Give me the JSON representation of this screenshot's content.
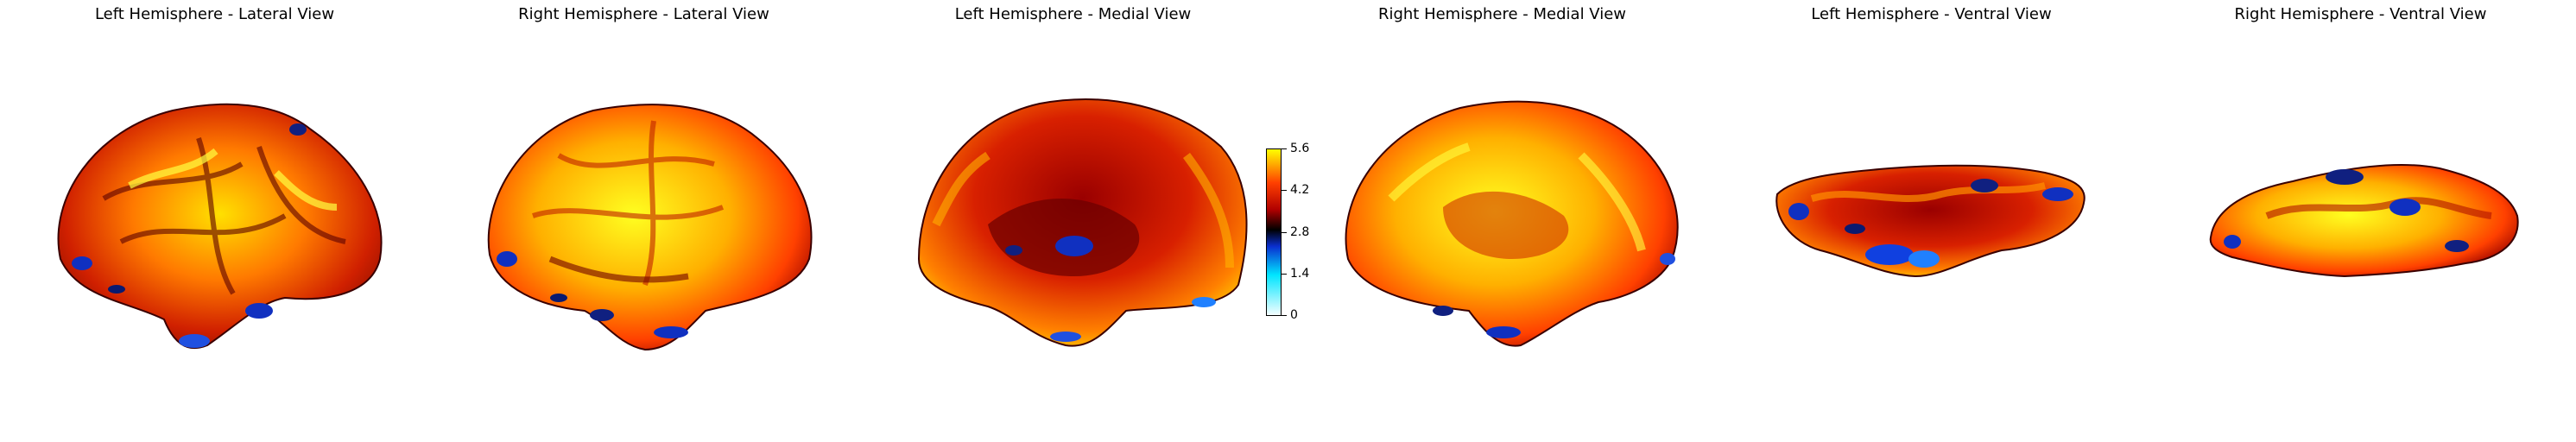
{
  "panels": [
    {
      "title": "Left Hemisphere - Lateral View"
    },
    {
      "title": "Right Hemisphere - Lateral View"
    },
    {
      "title": "Left Hemisphere - Medial View"
    },
    {
      "title": "Right Hemisphere - Medial View"
    },
    {
      "title": "Left Hemisphere - Ventral View"
    },
    {
      "title": "Right Hemisphere - Ventral View"
    }
  ],
  "colorbar": {
    "min": 0,
    "max": 5.6,
    "ticks": [
      "0",
      "1.4",
      "2.8",
      "4.2",
      "5.6"
    ],
    "colors": [
      "#ffffff",
      "#00e5ff",
      "#0a2fd0",
      "#000000",
      "#b00000",
      "#ff4000",
      "#ffff00"
    ]
  }
}
